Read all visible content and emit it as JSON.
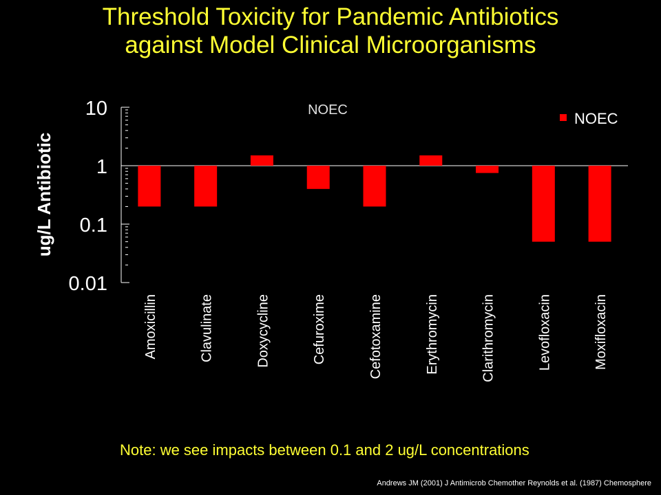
{
  "title_line1": "Threshold Toxicity for Pandemic Antibiotics",
  "title_line2": "against Model Clinical Microorganisms",
  "note": "Note: we see impacts between 0.1 and 2 ug/L concentrations",
  "citation": "Andrews JM (2001) J Antimicrob Chemother Reynolds et al. (1987) Chemosphere",
  "colors": {
    "background": "#000000",
    "title": "#ffff33",
    "bar": "#ff0000",
    "text": "#ffffff"
  },
  "chart_data": {
    "type": "bar",
    "title": "NOEC",
    "ylabel": "ug/L Antibiotic",
    "xlabel": "",
    "y_scale": "log",
    "ylim": [
      0.01,
      10
    ],
    "baseline": 1,
    "y_ticks": [
      {
        "value": 10,
        "label": "10"
      },
      {
        "value": 1,
        "label": "1"
      },
      {
        "value": 0.1,
        "label": "0.1"
      },
      {
        "value": 0.01,
        "label": "0.01"
      }
    ],
    "categories": [
      "Amoxicillin",
      "Clavulinate",
      "Doxycycline",
      "Cefuroxime",
      "Cefotoxamine",
      "Erythromycin",
      "Clarithromycin",
      "Levofloxacin",
      "Moxifloxacin"
    ],
    "series": [
      {
        "name": "NOEC",
        "values": [
          0.2,
          0.2,
          1.5,
          0.4,
          0.2,
          1.5,
          0.75,
          0.05,
          0.05
        ]
      }
    ],
    "legend": {
      "position": "top-right",
      "label": "NOEC"
    },
    "grid": false
  }
}
